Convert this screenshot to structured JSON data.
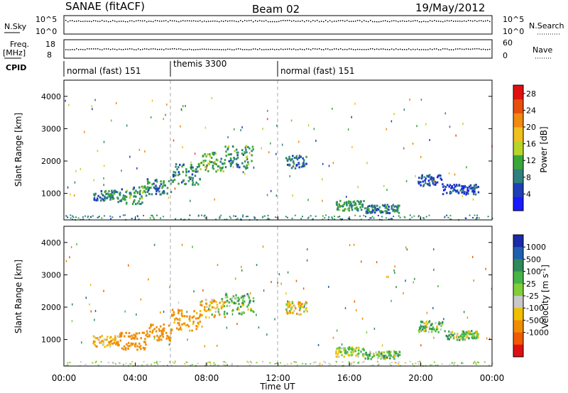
{
  "header": {
    "station": "SANAE (fitACF)",
    "beam": "Beam 02",
    "date": "19/May/2012"
  },
  "strips": {
    "nsky_label": "N.Sky",
    "nsky_top": "10^5",
    "nsky_bottom": "10^0",
    "nsearch_label": "N.Search",
    "nsearch_top": "10^5",
    "nsearch_bottom": "10^0",
    "freq_label": "Freq.",
    "freq_unit": "[MHz]",
    "freq_top": "18",
    "freq_bottom": "8",
    "nave_label": "Nave",
    "nave_top": "60",
    "nave_bottom": "0",
    "cpid_label": "CPID"
  },
  "cpid_segments": [
    {
      "label": "normal (fast) 151",
      "start_hour": 0,
      "end_hour": 6
    },
    {
      "label": "themis 3300",
      "start_hour": 6,
      "end_hour": 12
    },
    {
      "label": "normal (fast) 151",
      "start_hour": 12,
      "end_hour": 24
    }
  ],
  "axes": {
    "x_label": "Time UT",
    "x_ticks": [
      "00:00",
      "04:00",
      "08:00",
      "12:00",
      "16:00",
      "20:00",
      "00:00"
    ],
    "x_range_hours": [
      0,
      24
    ],
    "y_label": "Slant Range [km]",
    "y_ticks": [
      "1000",
      "2000",
      "3000",
      "4000"
    ],
    "y_range_km": [
      180,
      4500
    ]
  },
  "colorbars": {
    "power": {
      "title": "Power [dB]",
      "ticks": [
        "4",
        "8",
        "12",
        "16",
        "20",
        "24",
        "28"
      ],
      "range": [
        0,
        30
      ],
      "colors": [
        "#1a1aff",
        "#1e3fb8",
        "#2f7f7f",
        "#3aa63a",
        "#b7d42b",
        "#f0c020",
        "#f08a10",
        "#e84e0c",
        "#e01010"
      ]
    },
    "velocity": {
      "title": "Velocity [m s^-1]",
      "ticks": [
        "1000",
        "500",
        "100",
        "25",
        "-25",
        "-100",
        "-500",
        "-1000"
      ],
      "colors": [
        "#1a2aa8",
        "#1f5fb0",
        "#2e8a5a",
        "#46b446",
        "#7fcf3a",
        "#c8c8c8",
        "#f0c000",
        "#f08c00",
        "#f05a00",
        "#e01010"
      ]
    }
  },
  "chart_data": [
    {
      "type": "heatmap",
      "title": "Power [dB]",
      "xlabel": "Time UT",
      "ylabel": "Slant Range [km]",
      "xlim": [
        0,
        24
      ],
      "ylim": [
        180,
        4500
      ],
      "regions": [
        {
          "t0": 1.6,
          "t1": 3.0,
          "r0": 800,
          "r1": 1150,
          "value": 8
        },
        {
          "t0": 3.0,
          "t1": 4.6,
          "r0": 700,
          "r1": 1250,
          "value": 10
        },
        {
          "t0": 4.6,
          "t1": 6.0,
          "r0": 1000,
          "r1": 1500,
          "value": 9
        },
        {
          "t0": 6.0,
          "t1": 7.6,
          "r0": 1300,
          "r1": 1950,
          "value": 9
        },
        {
          "t0": 7.6,
          "t1": 9.0,
          "r0": 1700,
          "r1": 2300,
          "value": 11
        },
        {
          "t0": 9.0,
          "t1": 10.6,
          "r0": 1800,
          "r1": 2500,
          "value": 10
        },
        {
          "t0": 12.4,
          "t1": 13.6,
          "r0": 1800,
          "r1": 2200,
          "value": 7
        },
        {
          "t0": 15.2,
          "t1": 16.8,
          "r0": 500,
          "r1": 800,
          "value": 10
        },
        {
          "t0": 16.8,
          "t1": 18.8,
          "r0": 420,
          "r1": 680,
          "value": 8
        },
        {
          "t0": 19.8,
          "t1": 21.2,
          "r0": 1250,
          "r1": 1600,
          "value": 6
        },
        {
          "t0": 21.2,
          "t1": 23.2,
          "r0": 1000,
          "r1": 1300,
          "value": 5
        }
      ]
    },
    {
      "type": "heatmap",
      "title": "Velocity [m s^-1]",
      "xlabel": "Time UT",
      "ylabel": "Slant Range [km]",
      "xlim": [
        0,
        24
      ],
      "ylim": [
        180,
        4500
      ],
      "regions": [
        {
          "t0": 1.6,
          "t1": 3.0,
          "r0": 800,
          "r1": 1150,
          "value": -100
        },
        {
          "t0": 3.0,
          "t1": 4.6,
          "r0": 700,
          "r1": 1250,
          "value": -300
        },
        {
          "t0": 4.6,
          "t1": 6.0,
          "r0": 1000,
          "r1": 1500,
          "value": -200
        },
        {
          "t0": 6.0,
          "t1": 7.6,
          "r0": 1300,
          "r1": 1950,
          "value": -150
        },
        {
          "t0": 7.6,
          "t1": 9.0,
          "r0": 1700,
          "r1": 2300,
          "value": -50
        },
        {
          "t0": 9.0,
          "t1": 10.6,
          "r0": 1800,
          "r1": 2500,
          "value": 50
        },
        {
          "t0": 12.4,
          "t1": 13.6,
          "r0": 1800,
          "r1": 2200,
          "value": -60
        },
        {
          "t0": 15.2,
          "t1": 16.8,
          "r0": 500,
          "r1": 800,
          "value": 0
        },
        {
          "t0": 16.8,
          "t1": 18.8,
          "r0": 420,
          "r1": 680,
          "value": 60
        },
        {
          "t0": 19.8,
          "t1": 21.2,
          "r0": 1250,
          "r1": 1600,
          "value": 50
        },
        {
          "t0": 21.2,
          "t1": 23.2,
          "r0": 1000,
          "r1": 1300,
          "value": 30
        }
      ]
    }
  ]
}
